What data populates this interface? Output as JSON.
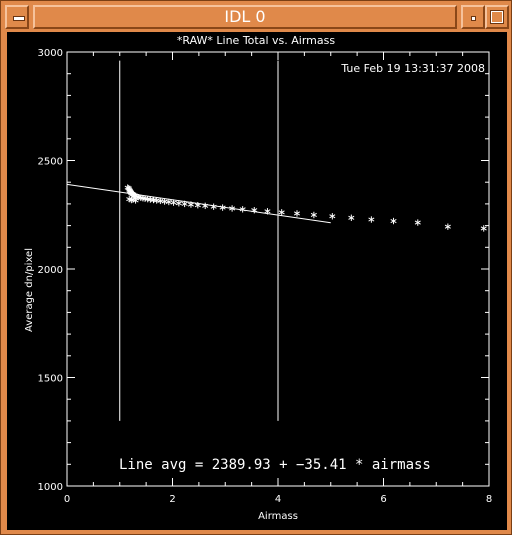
{
  "window": {
    "title": "IDL 0",
    "icons": {
      "menu": "window-menu-icon",
      "minimize": "minimize-icon",
      "maximize": "maximize-icon"
    }
  },
  "colors": {
    "frame": "#e0894a",
    "background": "#000000",
    "foreground": "#ffffff"
  },
  "chart_data": {
    "type": "scatter",
    "title": "*RAW* Line Total vs. Airmass",
    "timestamp": "Tue Feb 19 13:31:37 2008",
    "xlabel": "Airmass",
    "ylabel": "Average dn/pixel",
    "xlim": [
      0,
      8
    ],
    "ylim": [
      1000,
      3000
    ],
    "x_ticks": [
      "0",
      "2",
      "4",
      "6",
      "8"
    ],
    "y_ticks": [
      "1000",
      "1500",
      "2000",
      "2500",
      "3000"
    ],
    "annotation": "Line avg = 2389.93 + −35.41 * airmass",
    "fit_line": {
      "intercept": 2389.93,
      "slope": -35.41,
      "x_range": [
        0,
        5.0
      ]
    },
    "vertical_lines": [
      {
        "x": 1.0,
        "y_range": [
          1300,
          2960
        ]
      },
      {
        "x": 4.0,
        "y_range": [
          1300,
          2960
        ]
      }
    ],
    "series": [
      {
        "marker": "asterisk",
        "points": [
          [
            1.15,
            2375
          ],
          [
            1.17,
            2372
          ],
          [
            1.18,
            2366
          ],
          [
            1.19,
            2361
          ],
          [
            1.2,
            2357
          ],
          [
            1.21,
            2353
          ],
          [
            1.22,
            2349
          ],
          [
            1.24,
            2346
          ],
          [
            1.26,
            2343
          ],
          [
            1.28,
            2339
          ],
          [
            1.3,
            2336
          ],
          [
            1.33,
            2333
          ],
          [
            1.36,
            2331
          ],
          [
            1.4,
            2328
          ],
          [
            1.44,
            2326
          ],
          [
            1.48,
            2324
          ],
          [
            1.53,
            2322
          ],
          [
            1.58,
            2320
          ],
          [
            1.64,
            2318
          ],
          [
            1.7,
            2316
          ],
          [
            1.77,
            2314
          ],
          [
            1.85,
            2311
          ],
          [
            1.93,
            2309
          ],
          [
            2.02,
            2306
          ],
          [
            2.12,
            2303
          ],
          [
            2.23,
            2300
          ],
          [
            2.35,
            2297
          ],
          [
            2.48,
            2294
          ],
          [
            2.62,
            2291
          ],
          [
            2.78,
            2287
          ],
          [
            2.95,
            2283
          ],
          [
            3.13,
            2279
          ],
          [
            3.33,
            2275
          ],
          [
            3.55,
            2271
          ],
          [
            3.8,
            2266
          ],
          [
            4.07,
            2261
          ],
          [
            4.36,
            2256
          ],
          [
            4.68,
            2249
          ],
          [
            5.03,
            2243
          ],
          [
            5.39,
            2236
          ],
          [
            5.77,
            2228
          ],
          [
            6.19,
            2221
          ],
          [
            6.65,
            2214
          ],
          [
            7.22,
            2195
          ],
          [
            7.9,
            2187
          ],
          [
            1.18,
            2322
          ],
          [
            1.22,
            2318
          ],
          [
            1.25,
            2320
          ],
          [
            1.3,
            2316
          ]
        ]
      }
    ]
  }
}
